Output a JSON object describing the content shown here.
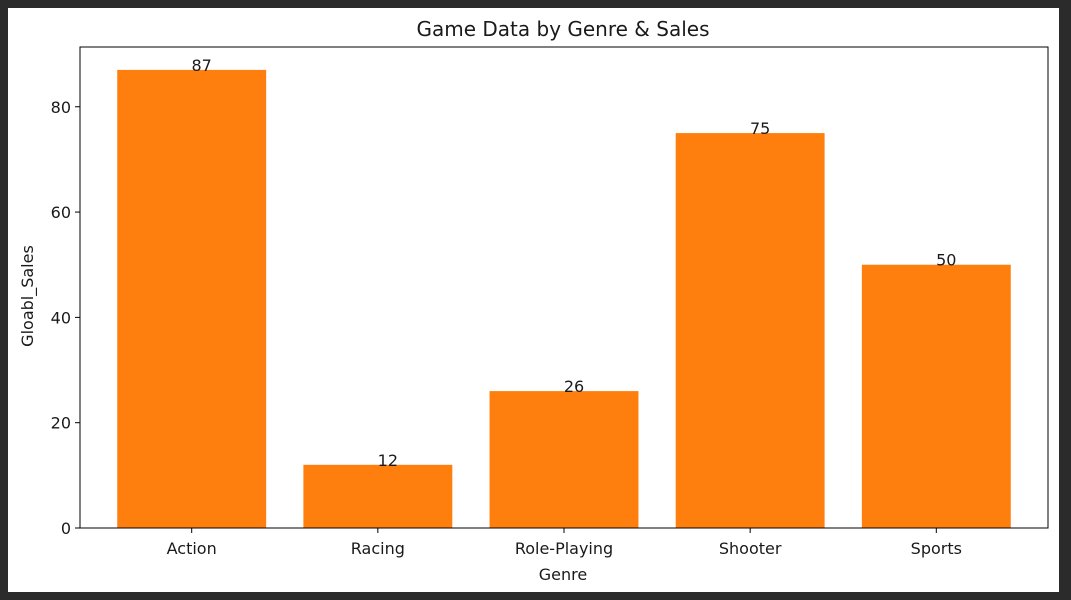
{
  "chart_data": {
    "type": "bar",
    "title": "Game Data by Genre & Sales",
    "xlabel": "Genre",
    "ylabel": "Gloabl_Sales",
    "categories": [
      "Action",
      "Racing",
      "Role-Playing",
      "Shooter",
      "Sports"
    ],
    "values": [
      87,
      12,
      26,
      75,
      50
    ],
    "data_labels": [
      "87",
      "12",
      "26",
      "75",
      "50"
    ],
    "yticks": [
      0,
      20,
      40,
      60,
      80
    ],
    "ylim": [
      0,
      91.35
    ],
    "grid": false,
    "bar_color": "#ff7f0e",
    "axis_color": "#000000"
  }
}
